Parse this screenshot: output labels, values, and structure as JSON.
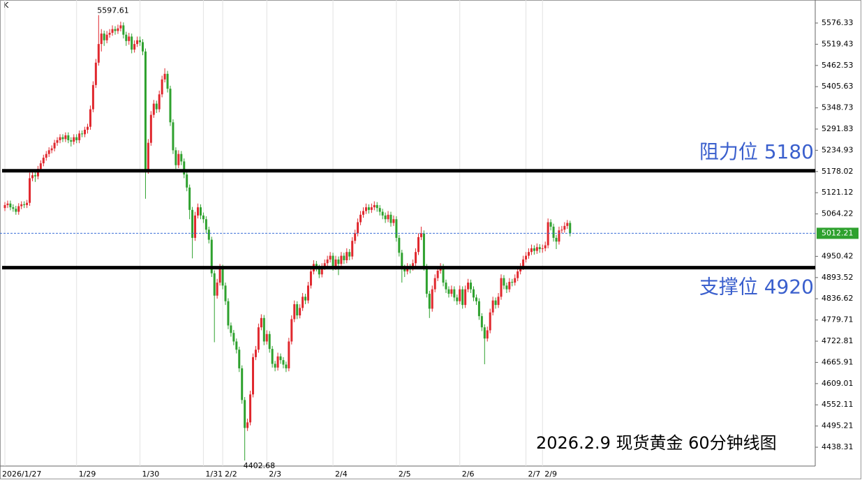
{
  "chart_data": {
    "type": "candlestick",
    "corner_label": "K",
    "title": "2026.2.9 现货黄金 60分钟线图",
    "up_color": "#e0282e",
    "down_color": "#2ea12e",
    "ylim": [
      4387.86,
      5638.09
    ],
    "yticks": [
      5576.33,
      5519.43,
      5462.53,
      5405.63,
      5348.73,
      5291.83,
      5234.93,
      5178.02,
      5121.12,
      5064.22,
      4950.42,
      4893.52,
      4836.62,
      4779.71,
      4722.81,
      4665.91,
      4609.01,
      4552.11,
      4495.21,
      4438.31
    ],
    "x_grid": true,
    "levels": [
      {
        "label": "阻力位 5180",
        "value": 5180,
        "color": "#3a5fcd"
      },
      {
        "label": "支撑位 4920",
        "value": 4920,
        "color": "#3a5fcd"
      }
    ],
    "categories": [
      "2026/1/27",
      null,
      null,
      null,
      null,
      null,
      null,
      null,
      null,
      null,
      null,
      null,
      null,
      null,
      null,
      null,
      null,
      null,
      null,
      null,
      null,
      null,
      null,
      null,
      null,
      null,
      "1/29",
      null,
      null,
      null,
      null,
      null,
      null,
      null,
      null,
      null,
      null,
      null,
      null,
      null,
      null,
      null,
      null,
      null,
      null,
      null,
      null,
      null,
      null,
      "1/30",
      null,
      null,
      null,
      null,
      null,
      null,
      null,
      null,
      null,
      null,
      null,
      null,
      null,
      null,
      null,
      null,
      null,
      null,
      null,
      null,
      null,
      null,
      "1/31",
      null,
      null,
      null,
      null,
      null,
      null,
      "2/2",
      null,
      null,
      null,
      null,
      null,
      null,
      null,
      null,
      null,
      null,
      null,
      null,
      null,
      null,
      null,
      "2/3",
      null,
      null,
      null,
      null,
      null,
      null,
      null,
      null,
      null,
      null,
      null,
      null,
      null,
      null,
      null,
      null,
      null,
      null,
      null,
      null,
      null,
      null,
      null,
      "2/4",
      null,
      null,
      null,
      null,
      null,
      null,
      null,
      null,
      null,
      null,
      null,
      null,
      null,
      null,
      null,
      null,
      null,
      null,
      null,
      null,
      null,
      null,
      "2/5",
      null,
      null,
      null,
      null,
      null,
      null,
      null,
      null,
      null,
      null,
      null,
      null,
      null,
      null,
      null,
      null,
      null,
      null,
      null,
      null,
      null,
      null,
      "2/6",
      null,
      null,
      null,
      null,
      null,
      null,
      null,
      null,
      null,
      null,
      null,
      null,
      null,
      null,
      null,
      null,
      null,
      null,
      null,
      null,
      null,
      null,
      null,
      "2/7",
      null,
      null,
      null,
      null,
      null,
      "2/9",
      null,
      null,
      null,
      null,
      null,
      null,
      null,
      null,
      null,
      null
    ],
    "open": [
      5080,
      5088,
      5092,
      5082,
      5078,
      5070,
      5085,
      5090,
      5088,
      5094,
      5160,
      5168,
      5165,
      5185,
      5200,
      5215,
      5225,
      5235,
      5240,
      5255,
      5262,
      5270,
      5265,
      5275,
      5262,
      5258,
      5270,
      5262,
      5280,
      5278,
      5290,
      5298,
      5345,
      5410,
      5470,
      5520,
      5548,
      5530,
      5545,
      5550,
      5560,
      5555,
      5562,
      5570,
      5545,
      5528,
      5540,
      5505,
      5520,
      5530,
      5525,
      5500,
      5180,
      5255,
      5330,
      5360,
      5345,
      5385,
      5425,
      5440,
      5400,
      5310,
      5235,
      5195,
      5225,
      5205,
      5170,
      5135,
      5075,
      5000,
      5060,
      5082,
      5060,
      5050,
      5022,
      4995,
      4905,
      4845,
      4880,
      4920,
      4872,
      4830,
      4765,
      4745,
      4722,
      4700,
      4650,
      4565,
      4490,
      4505,
      4580,
      4680,
      4700,
      4760,
      4785,
      4722,
      4742,
      4702,
      4662,
      4652,
      4682,
      4672,
      4660,
      4650,
      4722,
      4782,
      4822,
      4792,
      4812,
      4842,
      4832,
      4872,
      4910,
      4930,
      4920,
      4902,
      4922,
      4932,
      4942,
      4952,
      4922,
      4942,
      4930,
      4952,
      4940,
      4962,
      4950,
      4992,
      5012,
      5042,
      5062,
      5072,
      5082,
      5075,
      5082,
      5088,
      5080,
      5070,
      5060,
      5050,
      5062,
      5040,
      5050,
      5000,
      4960,
      4920,
      4910,
      4922,
      4920,
      4932,
      4962,
      5002,
      5012,
      4922,
      4850,
      4810,
      4862,
      4892,
      4912,
      4922,
      4880,
      4862,
      4850,
      4862,
      4840,
      4830,
      4862,
      4820,
      4862,
      4880,
      4862,
      4840,
      4830,
      4790,
      4760,
      4730,
      4752,
      4800,
      4832,
      4820,
      4842,
      4892,
      4872,
      4862,
      4882,
      4880,
      4892,
      4910,
      4922,
      4942,
      4952,
      4962,
      4972,
      4965,
      4975,
      4970,
      4972,
      4980,
      5042,
      5030,
      5000,
      4990,
      5020,
      5022,
      5032,
      5040
    ],
    "high": [
      5096,
      5100,
      5100,
      5090,
      5086,
      5093,
      5098,
      5098,
      5102,
      5175,
      5176,
      5176,
      5193,
      5208,
      5223,
      5233,
      5243,
      5248,
      5263,
      5270,
      5278,
      5278,
      5283,
      5283,
      5270,
      5278,
      5278,
      5288,
      5288,
      5298,
      5306,
      5355,
      5420,
      5480,
      5597.61,
      5560,
      5556,
      5555,
      5560,
      5570,
      5568,
      5572,
      5580,
      5578,
      5553,
      5550,
      5548,
      5530,
      5540,
      5540,
      5533,
      5508,
      5265,
      5340,
      5370,
      5368,
      5395,
      5435,
      5455,
      5448,
      5408,
      5318,
      5243,
      5235,
      5233,
      5213,
      5178,
      5143,
      5083,
      5070,
      5092,
      5090,
      5068,
      5058,
      5030,
      5003,
      4913,
      4890,
      4930,
      4928,
      4880,
      4838,
      4773,
      4753,
      4730,
      4708,
      4658,
      4573,
      4515,
      4590,
      4690,
      4710,
      4770,
      4795,
      4793,
      4752,
      4750,
      4710,
      4670,
      4692,
      4690,
      4680,
      4668,
      4732,
      4792,
      4832,
      4830,
      4822,
      4852,
      4850,
      4882,
      4920,
      4940,
      4938,
      4928,
      4932,
      4942,
      4952,
      4962,
      4960,
      4952,
      4950,
      4962,
      4960,
      4972,
      4970,
      5002,
      5022,
      5052,
      5072,
      5082,
      5092,
      5090,
      5092,
      5098,
      5096,
      5088,
      5078,
      5068,
      5072,
      5070,
      5060,
      5058,
      5008,
      4968,
      4928,
      4932,
      4930,
      4942,
      4972,
      5012,
      5030,
      5020,
      4930,
      4858,
      4872,
      4902,
      4922,
      4932,
      4930,
      4888,
      4870,
      4872,
      4870,
      4848,
      4872,
      4870,
      4872,
      4890,
      4888,
      4870,
      4848,
      4838,
      4798,
      4768,
      4762,
      4810,
      4842,
      4840,
      4852,
      4902,
      4900,
      4880,
      4892,
      4890,
      4902,
      4920,
      4932,
      4952,
      4962,
      4972,
      4982,
      4980,
      4985,
      4983,
      4982,
      4990,
      5052,
      5050,
      5038,
      5008,
      5030,
      5032,
      5042,
      5048,
      5046
    ],
    "low": [
      5072,
      5080,
      5074,
      5070,
      5062,
      5062,
      5077,
      5080,
      5080,
      5086,
      5152,
      5150,
      5157,
      5177,
      5192,
      5207,
      5217,
      5227,
      5232,
      5247,
      5254,
      5257,
      5257,
      5254,
      5245,
      5250,
      5254,
      5254,
      5270,
      5270,
      5280,
      5290,
      5337,
      5402,
      5462,
      5500,
      5515,
      5522,
      5537,
      5542,
      5545,
      5547,
      5554,
      5535,
      5515,
      5518,
      5495,
      5497,
      5512,
      5515,
      5490,
      5105,
      5172,
      5247,
      5322,
      5335,
      5337,
      5377,
      5417,
      5390,
      5300,
      5225,
      5185,
      5187,
      5195,
      5160,
      5125,
      5050,
      4945,
      4992,
      5052,
      5050,
      5040,
      5012,
      4985,
      4895,
      4720,
      4837,
      4872,
      4862,
      4820,
      4755,
      4735,
      4712,
      4690,
      4640,
      4555,
      4402.68,
      4482,
      4497,
      4572,
      4672,
      4692,
      4752,
      4712,
      4714,
      4692,
      4652,
      4642,
      4644,
      4662,
      4650,
      4640,
      4642,
      4714,
      4774,
      4782,
      4784,
      4804,
      4822,
      4824,
      4864,
      4902,
      4910,
      4892,
      4894,
      4914,
      4924,
      4934,
      4912,
      4914,
      4900,
      4922,
      4930,
      4932,
      4940,
      4942,
      4984,
      5004,
      5034,
      5054,
      5064,
      5065,
      5067,
      5074,
      5070,
      5060,
      5050,
      5040,
      5042,
      5030,
      5032,
      4990,
      4950,
      4880,
      4895,
      4902,
      4905,
      4912,
      4924,
      4954,
      4994,
      4912,
      4840,
      4785,
      4802,
      4854,
      4884,
      4904,
      4870,
      4852,
      4840,
      4842,
      4830,
      4820,
      4822,
      4810,
      4812,
      4854,
      4852,
      4830,
      4820,
      4780,
      4750,
      4661,
      4722,
      4744,
      4792,
      4810,
      4812,
      4834,
      4862,
      4852,
      4854,
      4870,
      4872,
      4884,
      4902,
      4914,
      4934,
      4944,
      4954,
      4955,
      4957,
      4960,
      4960,
      4964,
      4972,
      5020,
      4990,
      4970,
      4982,
      5012,
      5014,
      5024,
      5004
    ],
    "close": [
      5088,
      5092,
      5082,
      5078,
      5070,
      5085,
      5090,
      5088,
      5094,
      5160,
      5168,
      5165,
      5185,
      5200,
      5215,
      5225,
      5235,
      5240,
      5255,
      5262,
      5270,
      5265,
      5275,
      5262,
      5258,
      5270,
      5262,
      5280,
      5278,
      5290,
      5298,
      5345,
      5410,
      5470,
      5520,
      5548,
      5530,
      5545,
      5550,
      5560,
      5555,
      5562,
      5570,
      5545,
      5528,
      5540,
      5505,
      5520,
      5530,
      5525,
      5500,
      5180,
      5255,
      5330,
      5360,
      5345,
      5385,
      5425,
      5440,
      5400,
      5310,
      5235,
      5195,
      5225,
      5205,
      5170,
      5135,
      5075,
      5000,
      5060,
      5082,
      5060,
      5050,
      5022,
      4995,
      4905,
      4845,
      4880,
      4920,
      4872,
      4830,
      4765,
      4745,
      4722,
      4700,
      4650,
      4565,
      4490,
      4505,
      4580,
      4680,
      4700,
      4760,
      4785,
      4722,
      4742,
      4702,
      4662,
      4652,
      4682,
      4672,
      4660,
      4650,
      4722,
      4782,
      4822,
      4792,
      4812,
      4842,
      4832,
      4872,
      4910,
      4930,
      4920,
      4902,
      4922,
      4932,
      4942,
      4952,
      4922,
      4942,
      4930,
      4952,
      4940,
      4962,
      4950,
      4992,
      5012,
      5042,
      5062,
      5072,
      5082,
      5075,
      5082,
      5088,
      5080,
      5070,
      5060,
      5050,
      5062,
      5040,
      5050,
      5000,
      4960,
      4920,
      4910,
      4922,
      4920,
      4932,
      4962,
      5002,
      5012,
      4922,
      4850,
      4810,
      4862,
      4892,
      4912,
      4922,
      4880,
      4862,
      4850,
      4862,
      4840,
      4830,
      4862,
      4820,
      4862,
      4880,
      4862,
      4840,
      4830,
      4790,
      4760,
      4730,
      4752,
      4800,
      4832,
      4820,
      4842,
      4892,
      4872,
      4862,
      4882,
      4880,
      4892,
      4910,
      4922,
      4942,
      4952,
      4962,
      4972,
      4965,
      4975,
      4970,
      4972,
      4980,
      5042,
      5030,
      5000,
      4990,
      5020,
      5022,
      5032,
      5040,
      5012.21
    ]
  }
}
